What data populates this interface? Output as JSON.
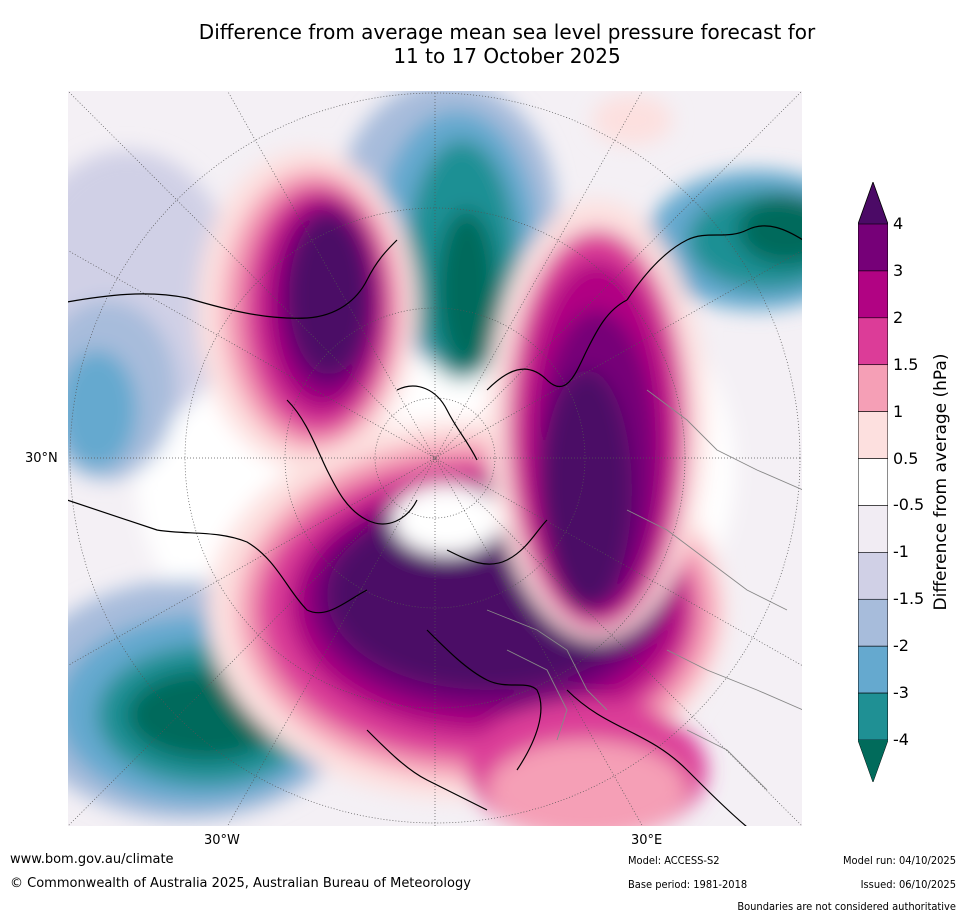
{
  "title_line1": "Difference from average mean sea level pressure forecast for",
  "title_line2": "11 to 17 October 2025",
  "map": {
    "lat_label": "30°N",
    "lon_labels": [
      "30°W",
      "30°E"
    ]
  },
  "colorbar": {
    "label": "Difference from average (hPa)",
    "ticks": [
      "4",
      "3",
      "2",
      "1.5",
      "1",
      "0.5",
      "-0.5",
      "-1",
      "-1.5",
      "-2",
      "-3",
      "-4"
    ],
    "colors": [
      "#4b0a66",
      "#760078",
      "#b10383",
      "#dc3c98",
      "#f59fb6",
      "#fde0df",
      "#ffffff",
      "#f1ecf3",
      "#d0d0e6",
      "#a7bcdb",
      "#65a9cf",
      "#1f9094",
      "#016b5b"
    ]
  },
  "footer": {
    "website": "www.bom.gov.au/climate",
    "copyright": "© Commonwealth of Australia 2025, Australian Bureau of Meteorology",
    "model": "Model: ACCESS-S2",
    "model_run": "Model run: 04/10/2025",
    "base_period": "Base period: 1981-2018",
    "issued": "Issued: 06/10/2025",
    "disclaimer": "Boundaries are not considered authoritative"
  }
}
